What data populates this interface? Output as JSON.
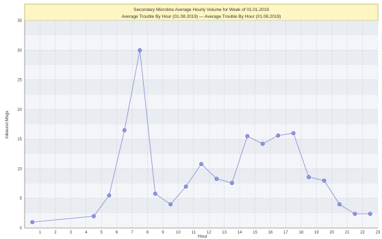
{
  "chart_data": {
    "type": "line",
    "title": "Secondary Microline Average Hourly Volume for Week of 01.01.2019",
    "subtitle": "Average Trouble By Hour (01.08.2019)  —  Average Trouble By Hour (01.08.2019)",
    "xlabel": "Hour",
    "ylabel": "Inbound Msgs",
    "xlim": [
      0,
      23
    ],
    "ylim": [
      0,
      35
    ],
    "xticks": [
      1,
      2,
      3,
      4,
      5,
      6,
      7,
      8,
      9,
      10,
      11,
      12,
      13,
      14,
      15,
      16,
      17,
      18,
      19,
      20,
      21,
      22,
      23
    ],
    "yticks": [
      0,
      5,
      10,
      15,
      20,
      25,
      30,
      35
    ],
    "grid": true,
    "series": [
      {
        "color": "#8f96e8",
        "points": [
          {
            "x": 0.5,
            "y": 1
          },
          {
            "x": 4.5,
            "y": 2
          },
          {
            "x": 5.5,
            "y": 5.5
          },
          {
            "x": 6.5,
            "y": 16.5
          },
          {
            "x": 7.5,
            "y": 30
          },
          {
            "x": 8.5,
            "y": 5.8
          },
          {
            "x": 9.5,
            "y": 4
          },
          {
            "x": 10.5,
            "y": 7
          },
          {
            "x": 11.5,
            "y": 10.8
          },
          {
            "x": 12.5,
            "y": 8.3
          },
          {
            "x": 13.5,
            "y": 7.6
          },
          {
            "x": 14.5,
            "y": 15.5
          },
          {
            "x": 15.5,
            "y": 14.2
          },
          {
            "x": 16.5,
            "y": 15.6
          },
          {
            "x": 17.5,
            "y": 16
          },
          {
            "x": 18.5,
            "y": 8.6
          },
          {
            "x": 19.5,
            "y": 8
          },
          {
            "x": 20.5,
            "y": 4
          },
          {
            "x": 21.5,
            "y": 2.4
          },
          {
            "x": 22.5,
            "y": 2.4
          }
        ]
      }
    ]
  }
}
